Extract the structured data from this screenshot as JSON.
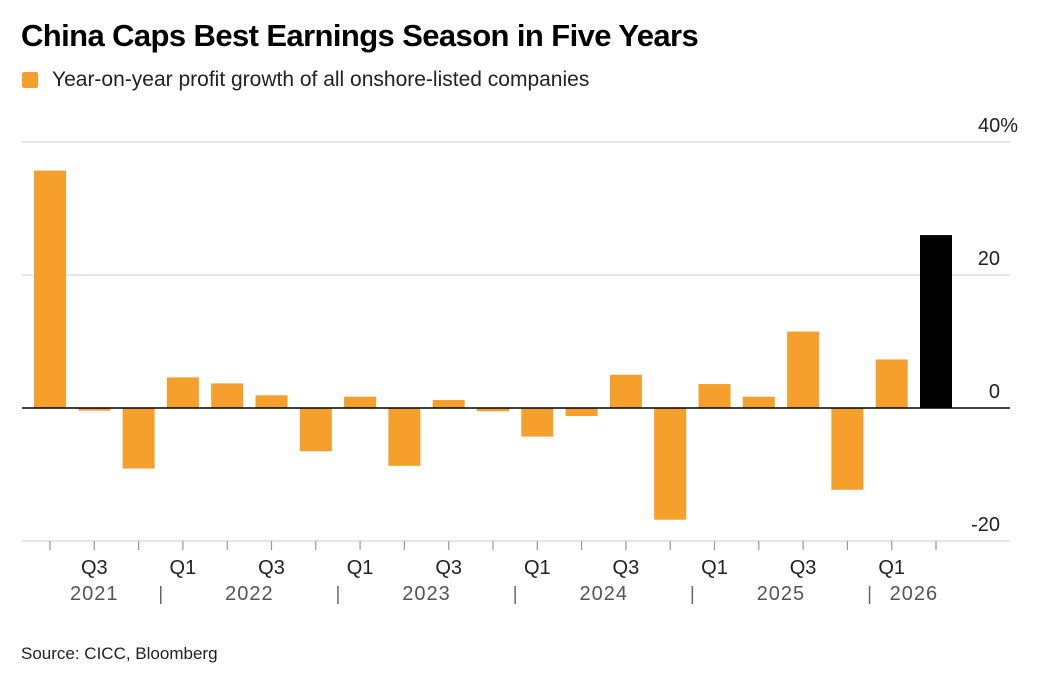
{
  "title": "China Caps Best Earnings Season in Five Years",
  "legend": {
    "label": "Year-on-year profit growth of all onshore-listed companies",
    "color": "#f5a02c"
  },
  "source": "Source: CICC, Bloomberg",
  "colors": {
    "bar": "#f5a02c",
    "highlight": "#000000",
    "grid": "#dddddd",
    "zero_line": "#000000"
  },
  "chart_data": {
    "type": "bar",
    "categories": [
      "2021 Q2",
      "2021 Q3",
      "2021 Q4",
      "2022 Q1",
      "2022 Q2",
      "2022 Q3",
      "2022 Q4",
      "2023 Q1",
      "2023 Q2",
      "2023 Q3",
      "2023 Q4",
      "2024 Q1",
      "2024 Q2",
      "2024 Q3",
      "2024 Q4",
      "2025 Q1",
      "2025 Q2",
      "2025 Q3",
      "2025 Q4",
      "2026 Q1",
      "2026 Q2"
    ],
    "values": [
      35.7,
      -0.4,
      -9.1,
      4.6,
      3.7,
      1.9,
      -6.5,
      1.7,
      -8.7,
      1.2,
      -0.5,
      -4.3,
      -1.2,
      5.0,
      -16.8,
      3.6,
      1.7,
      11.5,
      -12.3,
      7.3,
      26.0
    ],
    "highlight_index": 20,
    "y_ticks": [
      {
        "value": 40,
        "label": "40%"
      },
      {
        "value": 20,
        "label": "20"
      },
      {
        "value": 0,
        "label": "0"
      },
      {
        "value": -20,
        "label": "-20"
      }
    ],
    "ylim": [
      -20,
      40
    ],
    "x_quarter_labels": [
      {
        "index": 1,
        "label": "Q3"
      },
      {
        "index": 3,
        "label": "Q1"
      },
      {
        "index": 5,
        "label": "Q3"
      },
      {
        "index": 7,
        "label": "Q1"
      },
      {
        "index": 9,
        "label": "Q3"
      },
      {
        "index": 11,
        "label": "Q1"
      },
      {
        "index": 13,
        "label": "Q3"
      },
      {
        "index": 15,
        "label": "Q1"
      },
      {
        "index": 17,
        "label": "Q3"
      },
      {
        "index": 19,
        "label": "Q1"
      }
    ],
    "year_labels": [
      {
        "label": "2021",
        "from": 0,
        "to": 2
      },
      {
        "label": "2022",
        "from": 3,
        "to": 6
      },
      {
        "label": "2023",
        "from": 7,
        "to": 10
      },
      {
        "label": "2024",
        "from": 11,
        "to": 14
      },
      {
        "label": "2025",
        "from": 15,
        "to": 18
      },
      {
        "label": "2026",
        "from": 19,
        "to": 20
      }
    ],
    "y_axis_position": "right",
    "grid": true
  }
}
